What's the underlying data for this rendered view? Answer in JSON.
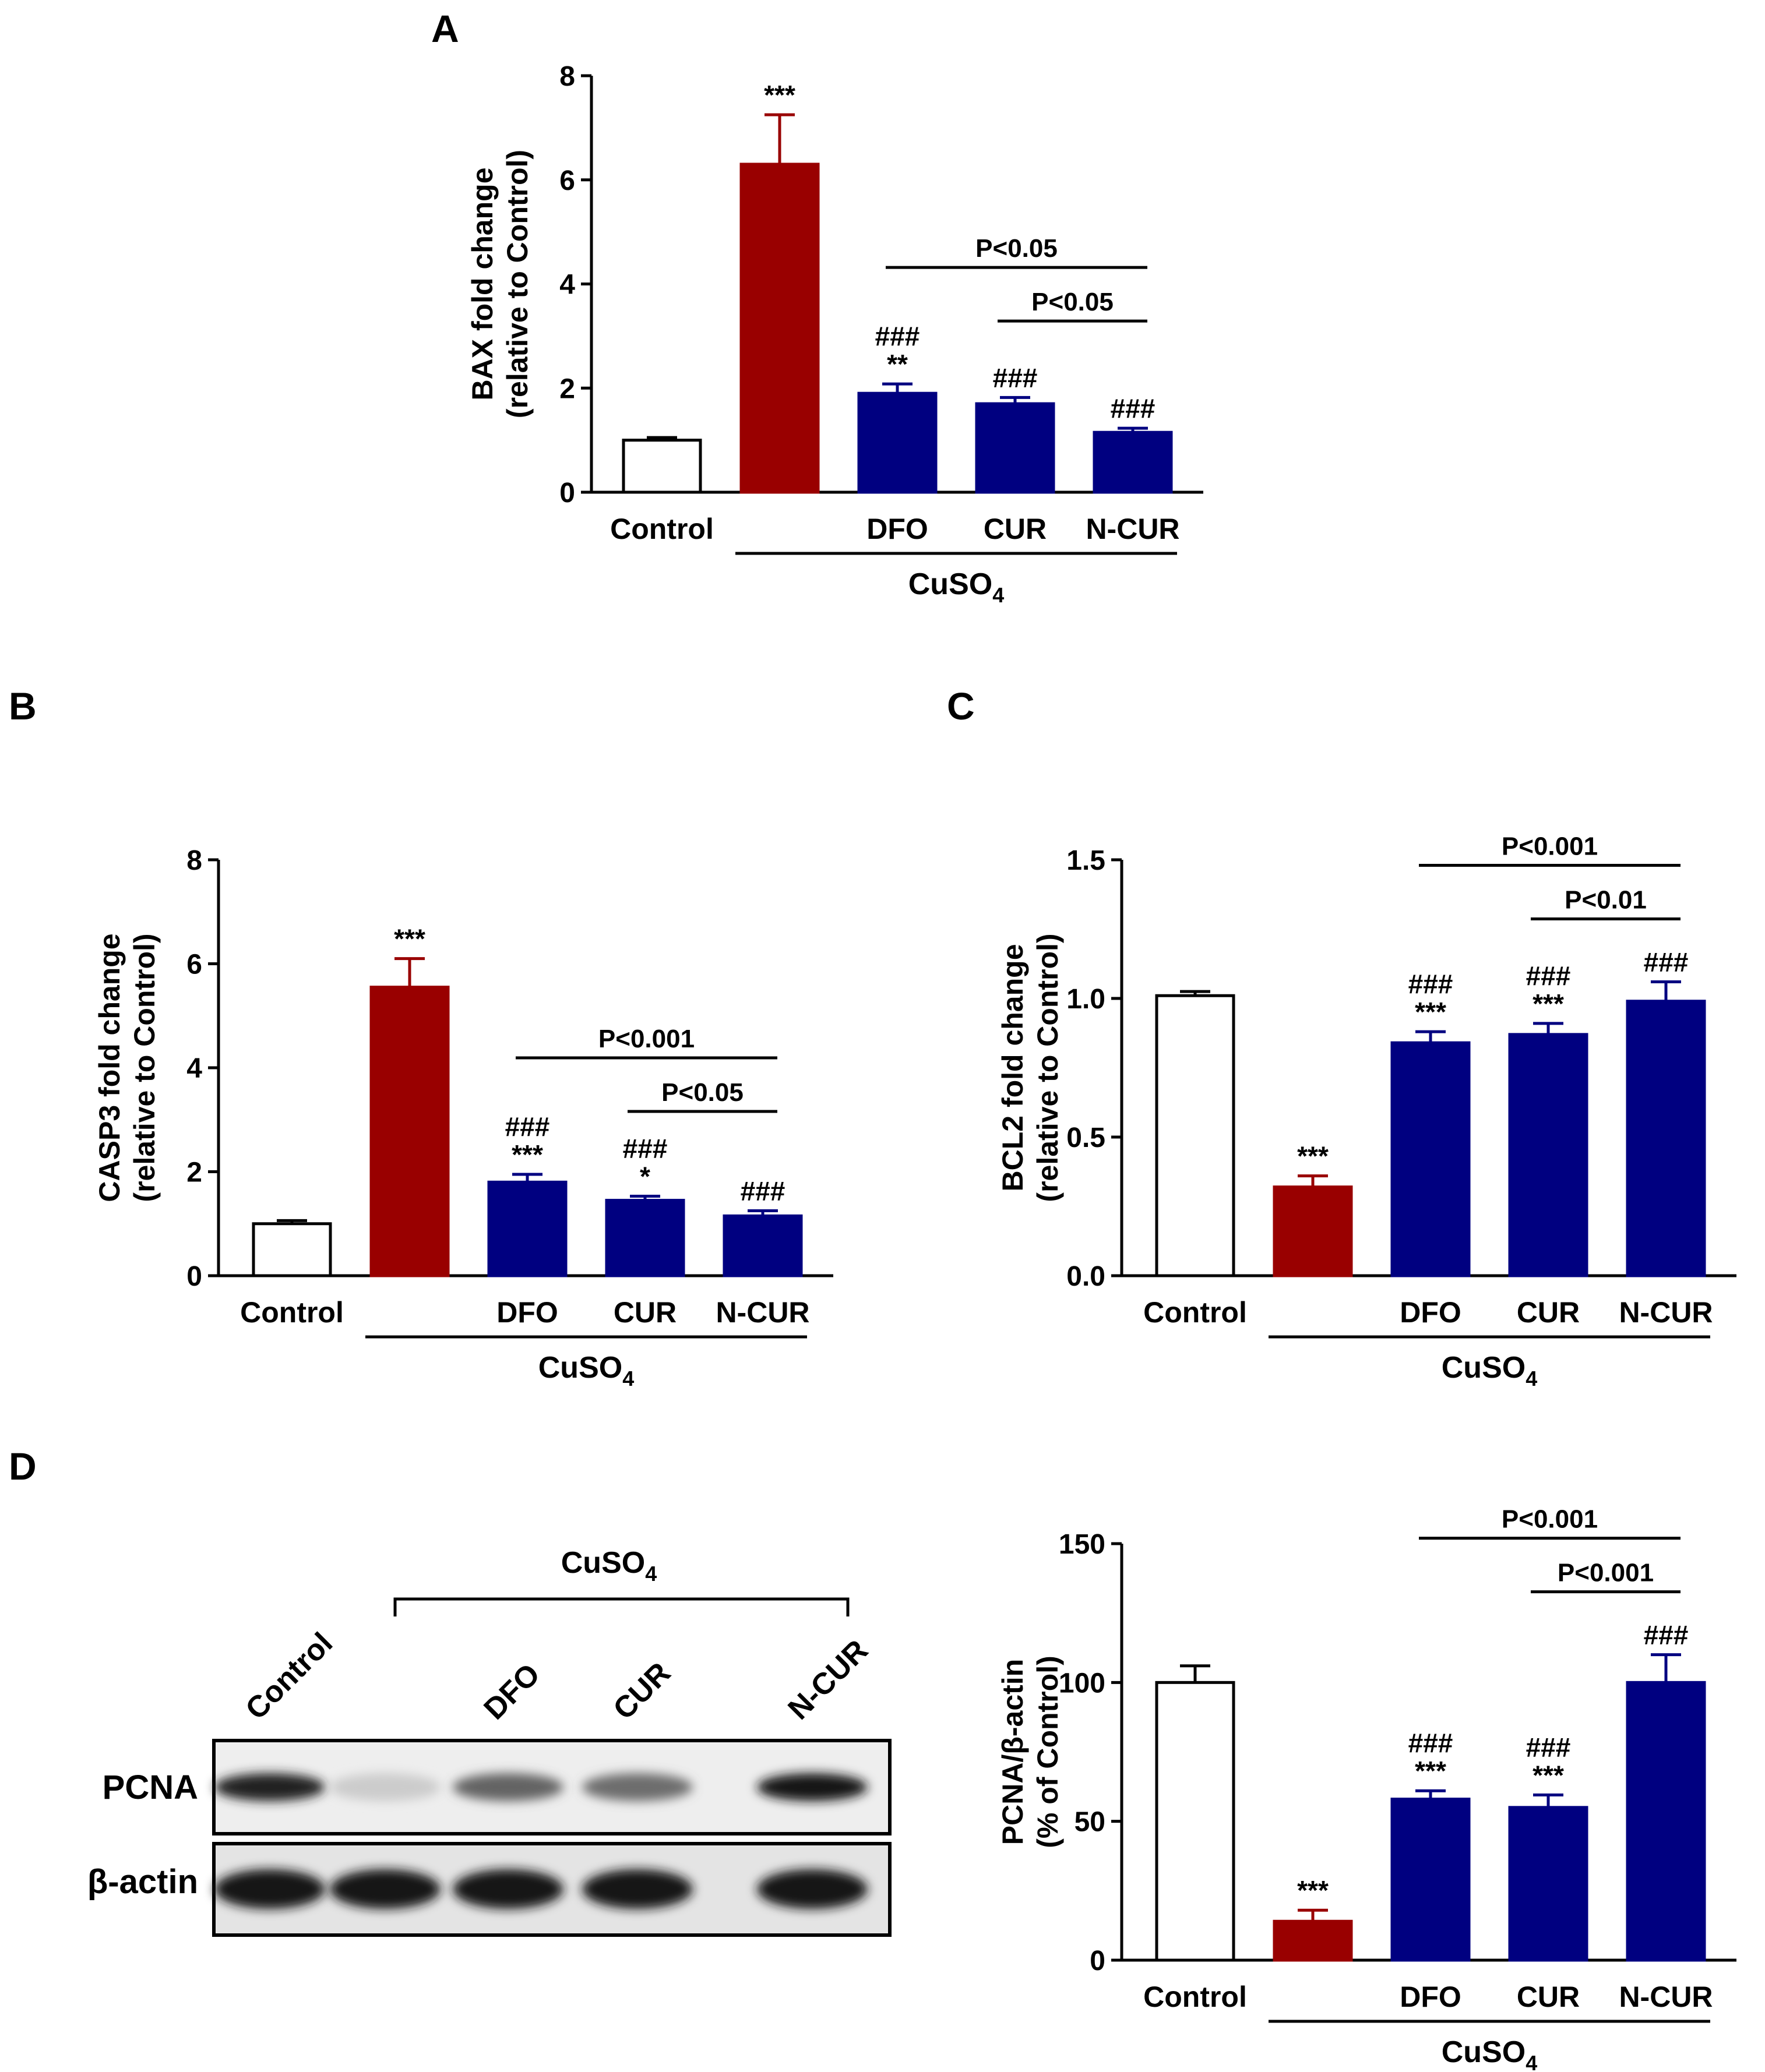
{
  "panels": [
    {
      "letter": "A"
    },
    {
      "letter": "B"
    },
    {
      "letter": "C"
    },
    {
      "letter": "D"
    }
  ],
  "group_label": "CuSO",
  "group_label_subscript": "4",
  "colors": {
    "control": "#ffffff",
    "cuso4": "#990000",
    "treatment": "#000080",
    "axis": "#000000"
  },
  "chart_data": [
    {
      "panel": "A",
      "type": "bar",
      "categories": [
        "Control",
        "",
        "DFO",
        "CUR",
        "N-CUR"
      ],
      "values": [
        1.0,
        6.3,
        1.9,
        1.7,
        1.15
      ],
      "errors": [
        0.05,
        0.95,
        0.18,
        0.12,
        0.08
      ],
      "bar_colors": [
        "control",
        "cuso4",
        "treatment",
        "treatment",
        "treatment"
      ],
      "significance": [
        [],
        [
          "***"
        ],
        [
          "###",
          "**"
        ],
        [
          "###"
        ],
        [
          "###"
        ]
      ],
      "ylabel": [
        "BAX fold change",
        "(relative to Control)"
      ],
      "ylim": [
        0,
        8
      ],
      "yticks": [
        "0",
        "2",
        "4",
        "6",
        "8"
      ],
      "comparisons": [
        {
          "from": 2,
          "to": 4,
          "label": "P<0.05"
        },
        {
          "from": 3,
          "to": 4,
          "label": "P<0.05"
        }
      ],
      "group_line": {
        "from": 1,
        "to": 4
      }
    },
    {
      "panel": "B",
      "type": "bar",
      "categories": [
        "Control",
        "",
        "DFO",
        "CUR",
        "N-CUR"
      ],
      "values": [
        1.0,
        5.55,
        1.8,
        1.45,
        1.15
      ],
      "errors": [
        0.06,
        0.55,
        0.15,
        0.08,
        0.1
      ],
      "bar_colors": [
        "control",
        "cuso4",
        "treatment",
        "treatment",
        "treatment"
      ],
      "significance": [
        [],
        [
          "***"
        ],
        [
          "###",
          "***"
        ],
        [
          "###",
          "*"
        ],
        [
          "###"
        ]
      ],
      "ylabel": [
        "CASP3 fold change",
        "(relative to Control)"
      ],
      "ylim": [
        0,
        8
      ],
      "yticks": [
        "0",
        "2",
        "4",
        "6",
        "8"
      ],
      "comparisons": [
        {
          "from": 2,
          "to": 4,
          "label": "P<0.001"
        },
        {
          "from": 3,
          "to": 4,
          "label": "P<0.05"
        }
      ],
      "group_line": {
        "from": 1,
        "to": 4
      }
    },
    {
      "panel": "C",
      "type": "bar",
      "categories": [
        "Control",
        "",
        "DFO",
        "CUR",
        "N-CUR"
      ],
      "values": [
        1.01,
        0.32,
        0.84,
        0.87,
        0.99
      ],
      "errors": [
        0.015,
        0.04,
        0.04,
        0.04,
        0.07
      ],
      "bar_colors": [
        "control",
        "cuso4",
        "treatment",
        "treatment",
        "treatment"
      ],
      "significance": [
        [],
        [
          "***"
        ],
        [
          "###",
          "***"
        ],
        [
          "###",
          "***"
        ],
        [
          "###"
        ]
      ],
      "ylabel": [
        "BCL2 fold change",
        "(relative to Control)"
      ],
      "ylim": [
        0,
        1.5
      ],
      "yticks": [
        "0.0",
        "0.5",
        "1.0",
        "1.5"
      ],
      "comparisons": [
        {
          "from": 2,
          "to": 4,
          "label": "P<0.001"
        },
        {
          "from": 3,
          "to": 4,
          "label": "P<0.01"
        }
      ],
      "group_line": {
        "from": 1,
        "to": 4
      }
    },
    {
      "panel": "D",
      "type": "bar",
      "categories": [
        "Control",
        "",
        "DFO",
        "CUR",
        "N-CUR"
      ],
      "values": [
        100,
        14,
        58,
        55,
        100
      ],
      "errors": [
        6,
        4,
        3,
        4.5,
        10
      ],
      "bar_colors": [
        "control",
        "cuso4",
        "treatment",
        "treatment",
        "treatment"
      ],
      "significance": [
        [],
        [
          "***"
        ],
        [
          "###",
          "***"
        ],
        [
          "###",
          "***"
        ],
        [
          "###"
        ]
      ],
      "ylabel": [
        "PCNA/β-actin",
        "(% of Control)"
      ],
      "ylim": [
        0,
        150
      ],
      "yticks": [
        "0",
        "50",
        "100",
        "150"
      ],
      "comparisons": [
        {
          "from": 2,
          "to": 4,
          "label": "P<0.001"
        },
        {
          "from": 3,
          "to": 4,
          "label": "P<0.001"
        }
      ],
      "group_line": {
        "from": 1,
        "to": 4
      }
    }
  ],
  "blot": {
    "lanes": [
      "Control",
      "",
      "DFO",
      "CUR",
      "N-CUR"
    ],
    "rows": [
      {
        "label": "PCNA",
        "intensity": [
          0.95,
          0.15,
          0.65,
          0.6,
          1.0
        ]
      },
      {
        "label": "β-actin",
        "intensity": [
          1.0,
          1.0,
          1.0,
          1.0,
          1.0
        ]
      }
    ]
  }
}
